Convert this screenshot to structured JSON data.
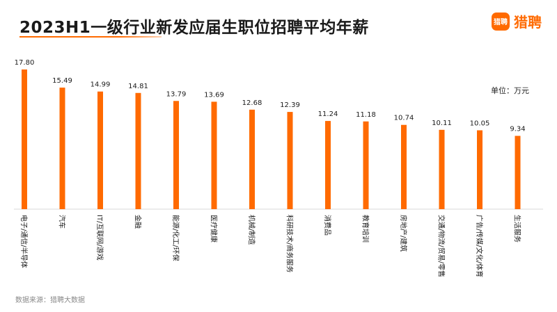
{
  "header": {
    "title": "2023H1一级行业新发应届生职位招聘平均年薪",
    "brand_logo_text": "猎聘",
    "brand_name": "猎聘"
  },
  "unit_label": "单位：万元",
  "source_label": "数据来源：猎聘大数据",
  "colors": {
    "bar": "#ff6a00",
    "accent": "#ff6a00"
  },
  "chart_data": {
    "type": "bar",
    "title": "2023H1一级行业新发应届生职位招聘平均年薪",
    "categories": [
      "电子/通信/半导体",
      "汽车",
      "IT/互联网/游戏",
      "金融",
      "能源/化工/环保",
      "医疗健康",
      "机械/制造",
      "科研技术/商务服务",
      "消费品",
      "教育培训",
      "房地产/建筑",
      "交通/物流/贸易/零售",
      "广告/传媒/文化/体育",
      "生活服务"
    ],
    "values": [
      17.8,
      15.49,
      14.99,
      14.81,
      13.79,
      13.69,
      12.68,
      12.39,
      11.24,
      11.18,
      10.74,
      10.11,
      10.05,
      9.34
    ],
    "ylabel": "单位：万元",
    "ylim": [
      0,
      17.8
    ],
    "grid": false,
    "legend": "none"
  }
}
